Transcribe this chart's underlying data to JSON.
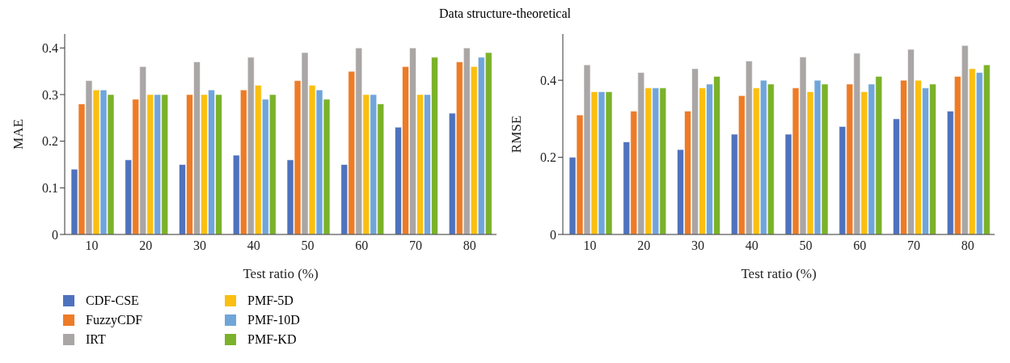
{
  "chart_data": [
    {
      "type": "bar",
      "title": "Data structure-theoretical",
      "xlabel": "Test ratio (%)",
      "ylabel": "MAE",
      "categories": [
        "10",
        "20",
        "30",
        "40",
        "50",
        "60",
        "70",
        "80"
      ],
      "ylim": [
        0,
        0.43
      ],
      "yticks": [
        0,
        0.1,
        0.2,
        0.3,
        0.4
      ],
      "grid": false,
      "legend": "bottom left",
      "series": [
        {
          "name": "CDF-CSE",
          "color": "#4e72bd",
          "values": [
            0.14,
            0.16,
            0.15,
            0.17,
            0.16,
            0.15,
            0.23,
            0.26
          ]
        },
        {
          "name": "FuzzyCDF",
          "color": "#ee7b26",
          "values": [
            0.28,
            0.29,
            0.3,
            0.31,
            0.33,
            0.35,
            0.36,
            0.37
          ]
        },
        {
          "name": "IRT",
          "color": "#aaa6a5",
          "values": [
            0.33,
            0.36,
            0.37,
            0.38,
            0.39,
            0.4,
            0.4,
            0.4
          ]
        },
        {
          "name": "PMF-5D",
          "color": "#fbbf10",
          "values": [
            0.31,
            0.3,
            0.3,
            0.32,
            0.32,
            0.3,
            0.3,
            0.36
          ]
        },
        {
          "name": "PMF-10D",
          "color": "#70a5da",
          "values": [
            0.31,
            0.3,
            0.31,
            0.29,
            0.31,
            0.3,
            0.3,
            0.38
          ]
        },
        {
          "name": "PMF-KD",
          "color": "#7bb229",
          "values": [
            0.3,
            0.3,
            0.3,
            0.3,
            0.29,
            0.28,
            0.38,
            0.39
          ]
        }
      ]
    },
    {
      "type": "bar",
      "xlabel": "Test ratio (%)",
      "ylabel": "RMSE",
      "categories": [
        "10",
        "20",
        "30",
        "40",
        "50",
        "60",
        "70",
        "80"
      ],
      "ylim": [
        0,
        0.52
      ],
      "yticks": [
        0,
        0.2,
        0.4
      ],
      "grid": false,
      "series": [
        {
          "color": "#4e72bd",
          "values": [
            0.2,
            0.24,
            0.22,
            0.26,
            0.26,
            0.28,
            0.3,
            0.32
          ]
        },
        {
          "color": "#ee7b26",
          "values": [
            0.31,
            0.32,
            0.32,
            0.36,
            0.38,
            0.39,
            0.4,
            0.41
          ]
        },
        {
          "color": "#aaa6a5",
          "values": [
            0.44,
            0.42,
            0.43,
            0.45,
            0.46,
            0.47,
            0.48,
            0.49
          ]
        },
        {
          "color": "#fbbf10",
          "values": [
            0.37,
            0.38,
            0.38,
            0.38,
            0.37,
            0.37,
            0.4,
            0.43
          ]
        },
        {
          "color": "#70a5da",
          "values": [
            0.37,
            0.38,
            0.39,
            0.4,
            0.4,
            0.39,
            0.38,
            0.42
          ]
        },
        {
          "color": "#7bb229",
          "values": [
            0.37,
            0.38,
            0.41,
            0.39,
            0.39,
            0.41,
            0.39,
            0.44
          ]
        }
      ]
    }
  ]
}
